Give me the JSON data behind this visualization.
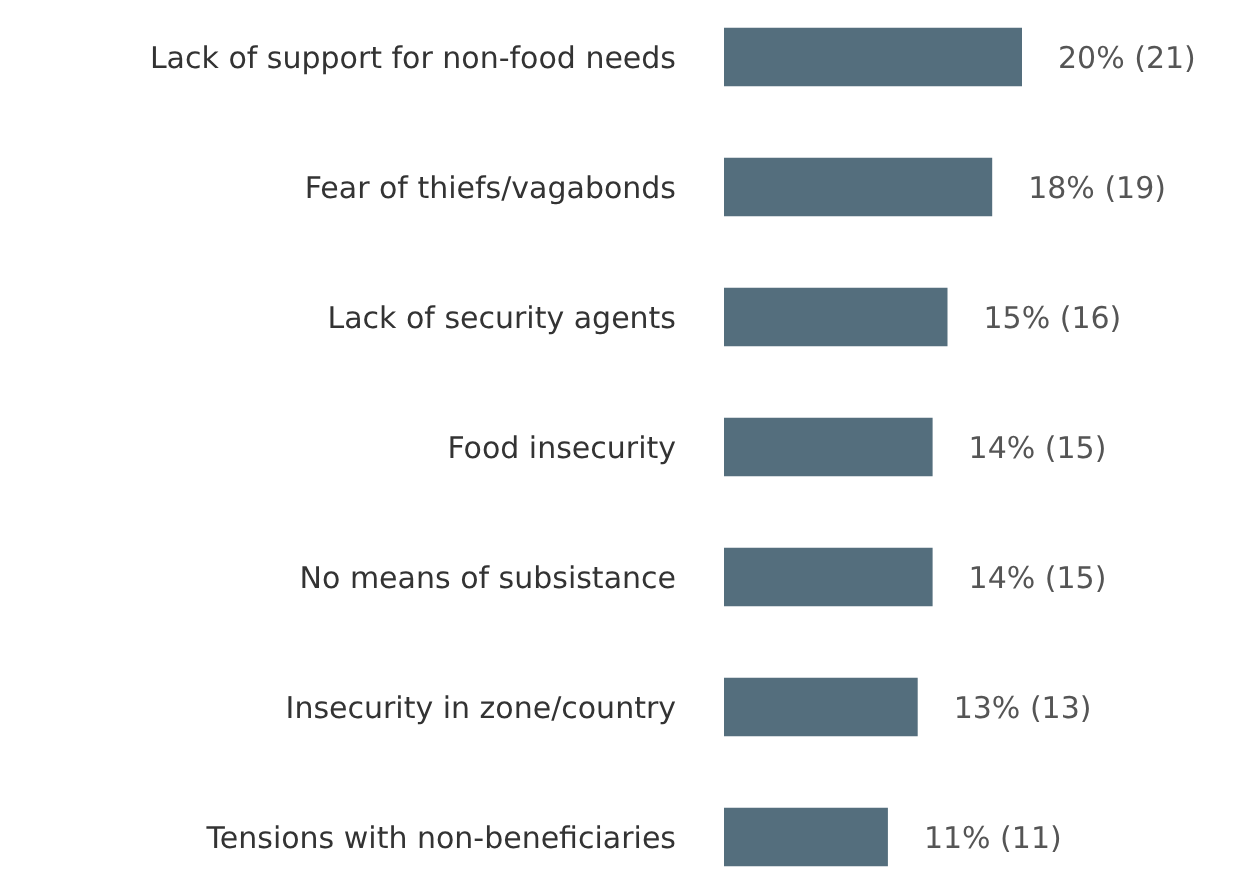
{
  "chart_data": {
    "type": "bar",
    "orientation": "horizontal",
    "categories": [
      "Lack of support for non-food needs",
      "Fear of thiefs/vagabonds",
      "Lack of security agents",
      "Food insecurity",
      "No means of subsistance",
      "Insecurity in zone/country",
      "Tensions with non-beneficiaries"
    ],
    "values": [
      20,
      18,
      15,
      14,
      14,
      13,
      11
    ],
    "value_labels": [
      "20% (21)",
      "18% (19)",
      "15% (16)",
      "14% (15)",
      "14% (15)",
      "13% (13)",
      "11% (11)"
    ],
    "color": "#546e7d",
    "tick_labels": "y"
  }
}
